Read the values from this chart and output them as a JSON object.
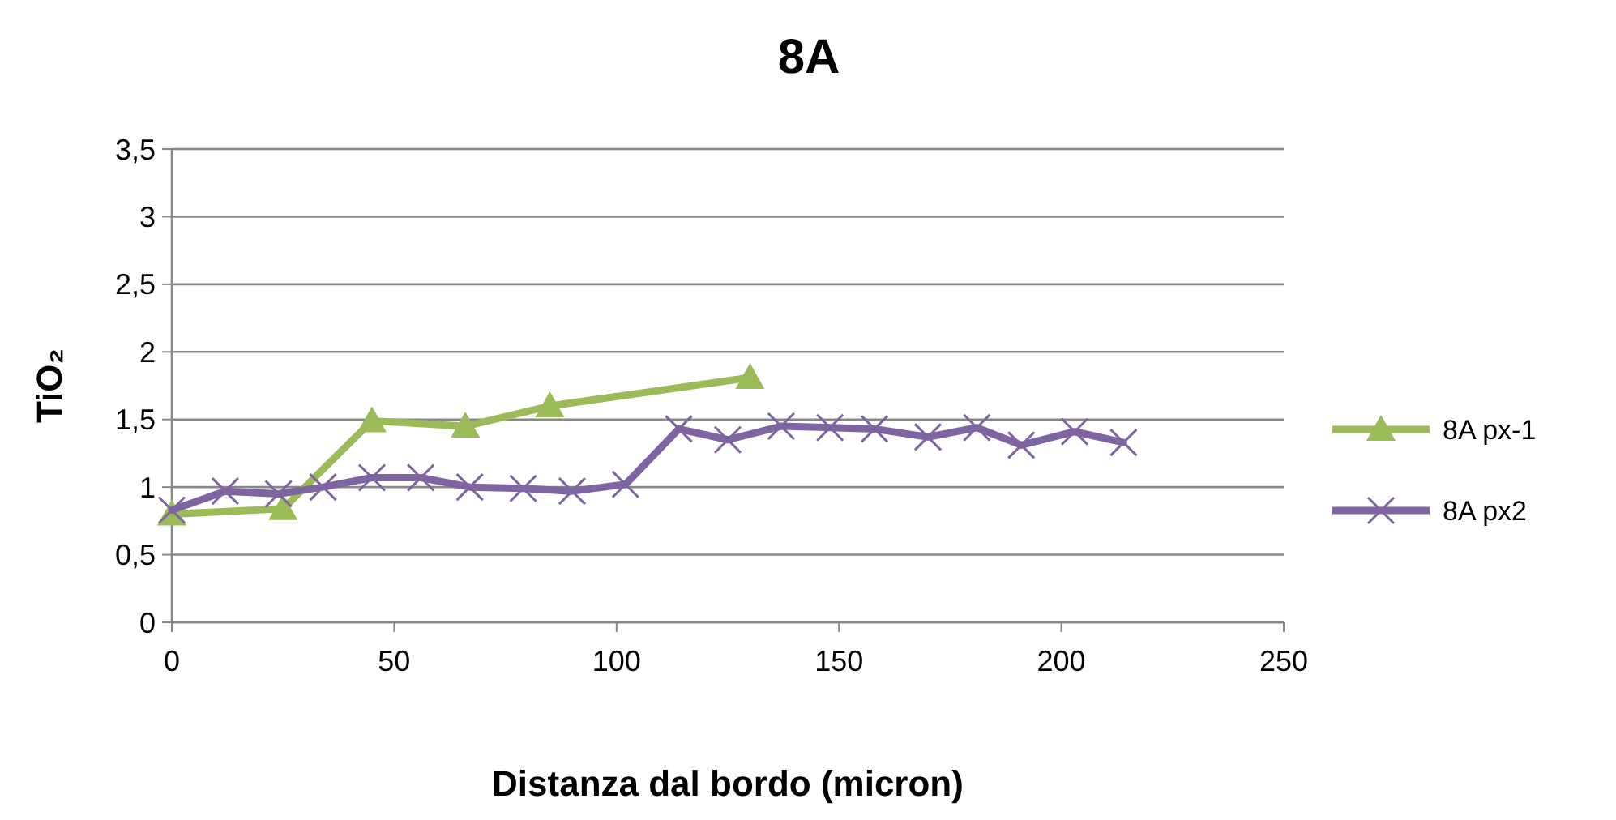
{
  "chart_data": {
    "type": "line",
    "title": "8A",
    "xlabel": "Distanza dal bordo (micron)",
    "ylabel": "TiO₂",
    "xlim": [
      0,
      250
    ],
    "xticks": [
      0,
      50,
      100,
      150,
      200,
      250
    ],
    "ylim": [
      0,
      3.5
    ],
    "yticks": [
      0,
      {
        "value": 0.5,
        "label": "0,5"
      },
      1,
      {
        "value": 1.5,
        "label": "1,5"
      },
      2,
      {
        "value": 2.5,
        "label": "2,5"
      },
      3,
      {
        "value": 3.5,
        "label": "3,5"
      }
    ],
    "grid": "y",
    "legend": "right",
    "series": [
      {
        "name": "8A px-1",
        "color": "#9bbb59",
        "marker": "triangle",
        "x": [
          0,
          25,
          45,
          66,
          85,
          130
        ],
        "values": [
          0.8,
          0.84,
          1.49,
          1.45,
          1.6,
          1.81
        ]
      },
      {
        "name": "8A px2",
        "color": "#8064a2",
        "marker": "cross",
        "x": [
          0,
          12,
          24,
          34,
          45,
          56,
          67,
          79,
          90,
          102,
          114,
          125,
          137,
          148,
          158,
          170,
          181,
          191,
          203,
          214
        ],
        "values": [
          0.83,
          0.97,
          0.95,
          1.0,
          1.07,
          1.07,
          1.0,
          0.99,
          0.97,
          1.02,
          1.43,
          1.35,
          1.45,
          1.44,
          1.43,
          1.37,
          1.44,
          1.31,
          1.41,
          1.33
        ]
      }
    ]
  }
}
